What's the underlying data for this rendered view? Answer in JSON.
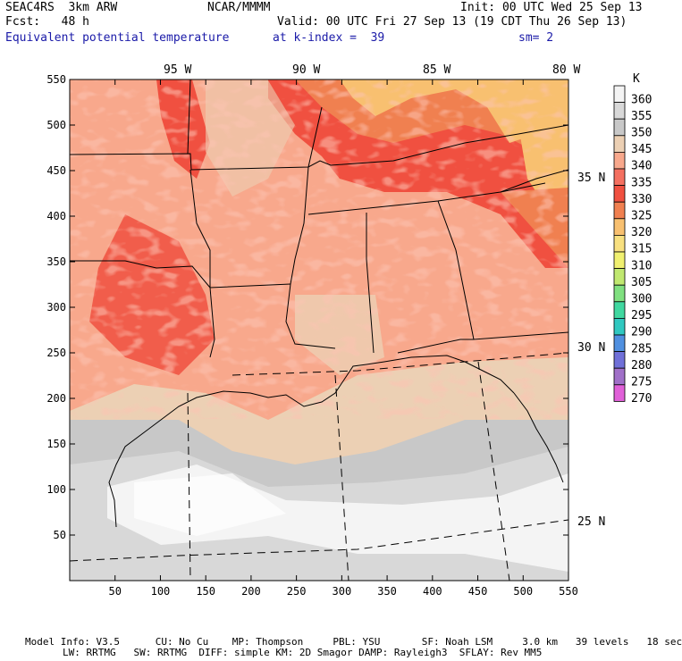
{
  "header": {
    "model": "SEAC4RS  3km ARW",
    "org": "NCAR/MMMM",
    "init": "Init: 00 UTC Wed 25 Sep 13",
    "fcst": "Fcst:   48 h",
    "valid": "Valid: 00 UTC Fri 27 Sep 13 (19 CDT Thu 26 Sep 13)",
    "field": "Equivalent potential temperature",
    "level": "at k-index =  39",
    "smooth": "sm= 2"
  },
  "map": {
    "x_ticks": [
      "50",
      "100",
      "150",
      "200",
      "250",
      "300",
      "350",
      "400",
      "450",
      "500",
      "550"
    ],
    "y_ticks": [
      "50",
      "100",
      "150",
      "200",
      "250",
      "300",
      "350",
      "400",
      "450",
      "500",
      "550"
    ],
    "lon_labels": [
      "95 W",
      "90 W",
      "85 W",
      "80 W"
    ],
    "lat_labels": [
      "35 N",
      "30 N",
      "25 N"
    ]
  },
  "colorbar": {
    "unit": "K",
    "levels": [
      "360",
      "355",
      "350",
      "345",
      "340",
      "335",
      "330",
      "325",
      "320",
      "315",
      "310",
      "305",
      "300",
      "295",
      "290",
      "285",
      "280",
      "275",
      "270"
    ],
    "colors": [
      "#f4f4f4",
      "#d8d8d8",
      "#c8c8c8",
      "#ecd0b4",
      "#f8a88c",
      "#f47060",
      "#f05040",
      "#f08050",
      "#f8c070",
      "#f8e080",
      "#f0f070",
      "#c0e870",
      "#80e080",
      "#40d8a0",
      "#30c8c0",
      "#5090e0",
      "#7070d8",
      "#a070c8",
      "#e060d8"
    ]
  },
  "footer": {
    "line1": "Model Info: V3.5      CU: No Cu    MP: Thompson     PBL: YSU       SF: Noah LSM     3.0 km   39 levels   18 sec",
    "line2": "LW: RRTMG   SW: RRTMG  DIFF: simple KM: 2D Smagor DAMP: Rayleigh3  SFLAY: Rev MM5"
  }
}
